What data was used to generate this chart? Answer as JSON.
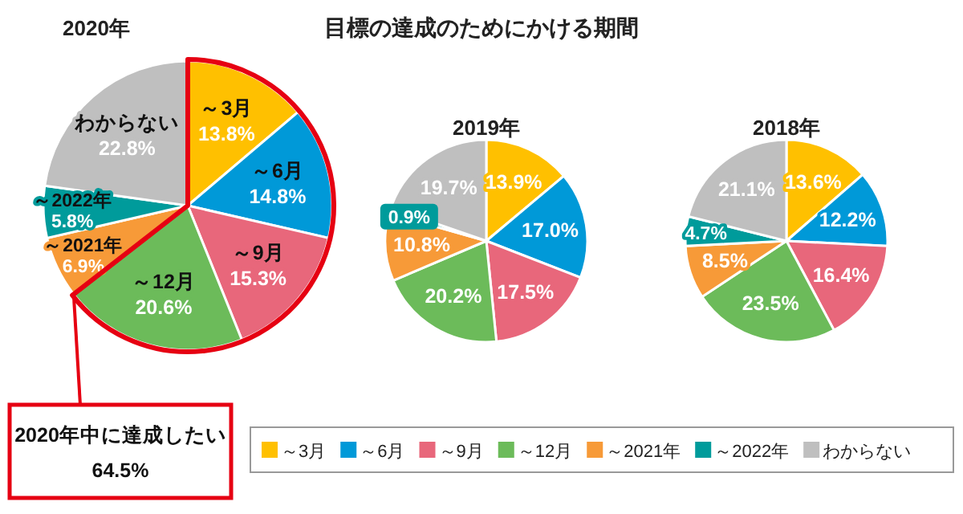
{
  "chart_data": [
    {
      "type": "pie",
      "title": "目標の達成のためにかける期間",
      "subtitle": "2020年",
      "categories": [
        "～3月",
        "～6月",
        "～9月",
        "～12月",
        "～2021年",
        "～2022年",
        "わからない"
      ],
      "values": [
        13.8,
        14.8,
        15.3,
        20.6,
        6.9,
        5.8,
        22.8
      ],
      "colors": [
        "#ffc000",
        "#0099d8",
        "#e8677b",
        "#6cbb5a",
        "#f79a38",
        "#009b9b",
        "#bfbfbf"
      ],
      "value_labels": [
        "～3月\n13.8%",
        "～6月\n14.8%",
        "～9月\n15.3%",
        "～12月\n20.6%",
        "～2021年\n6.9%",
        "～2022年\n5.8%",
        "わからない\n22.8%"
      ],
      "legend": "bottom",
      "annotations": [
        "2020年中に達成したい\n64.5%"
      ]
    },
    {
      "type": "pie",
      "subtitle": "2019年",
      "values": [
        13.9,
        17.0,
        17.5,
        20.2,
        10.8,
        0.9,
        19.7
      ],
      "colors": [
        "#ffc000",
        "#0099d8",
        "#e8677b",
        "#6cbb5a",
        "#f79a38",
        "#009b9b",
        "#bfbfbf"
      ],
      "value_labels": [
        "13.9%",
        "17.0%",
        "17.5%",
        "20.2%",
        "10.8%",
        "0.9%",
        "19.7%"
      ]
    },
    {
      "type": "pie",
      "subtitle": "2018年",
      "values": [
        13.6,
        12.2,
        16.4,
        23.5,
        8.5,
        4.7,
        21.1
      ],
      "colors": [
        "#ffc000",
        "#0099d8",
        "#e8677b",
        "#6cbb5a",
        "#f79a38",
        "#009b9b",
        "#bfbfbf"
      ],
      "value_labels": [
        "13.6%",
        "12.2%",
        "16.4%",
        "23.5%",
        "8.5%",
        "4.7%",
        "21.1%"
      ]
    }
  ]
}
